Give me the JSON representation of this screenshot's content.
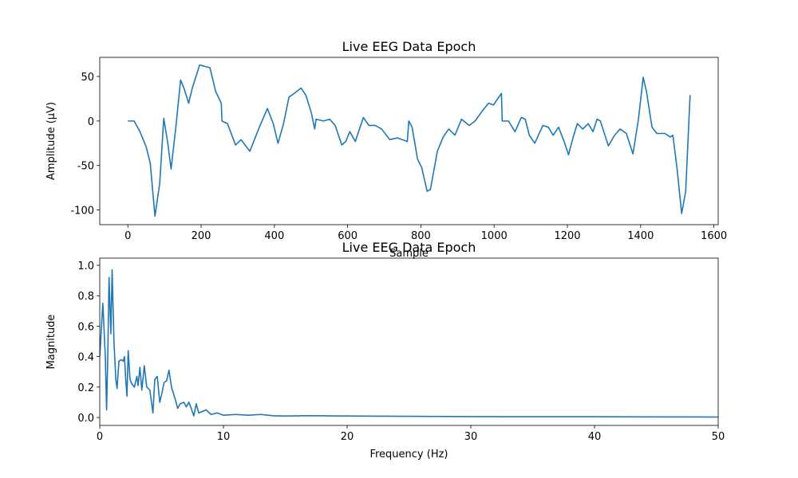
{
  "chart_data": [
    {
      "type": "line",
      "title": "Live EEG Data Epoch",
      "xlabel": "Sample",
      "ylabel": "Amplitude (µV)",
      "color": "#1f77b4",
      "grid": false,
      "xlim": [
        -76.75,
        1611.75
      ],
      "ylim": [
        -116.5,
        71.5
      ],
      "xticks": [
        0,
        200,
        400,
        600,
        800,
        1000,
        1200,
        1400,
        1600
      ],
      "yticks": [
        -100,
        -50,
        0,
        50
      ],
      "x": [
        0,
        17,
        33,
        50,
        61,
        74,
        87,
        98,
        109,
        118,
        131,
        144,
        153,
        166,
        176,
        196,
        213,
        224,
        240,
        255,
        257,
        272,
        294,
        309,
        333,
        359,
        381,
        397,
        410,
        425,
        440,
        451,
        473,
        486,
        501,
        510,
        514,
        534,
        551,
        566,
        584,
        595,
        606,
        621,
        643,
        658,
        675,
        693,
        715,
        736,
        763,
        767,
        776,
        791,
        802,
        817,
        826,
        845,
        861,
        876,
        893,
        911,
        932,
        948,
        969,
        985,
        998,
        1020,
        1022,
        1039,
        1057,
        1074,
        1085,
        1096,
        1111,
        1133,
        1148,
        1161,
        1176,
        1191,
        1203,
        1216,
        1227,
        1242,
        1257,
        1270,
        1281,
        1290,
        1301,
        1312,
        1329,
        1344,
        1361,
        1379,
        1394,
        1407,
        1416,
        1431,
        1444,
        1466,
        1481,
        1488,
        1499,
        1512,
        1523,
        1535
      ],
      "values": [
        0,
        0,
        -12,
        -29,
        -47,
        -107,
        -70,
        3,
        -25,
        -54,
        -7,
        46,
        37,
        20,
        37,
        63,
        61,
        60,
        33,
        20,
        0,
        -3,
        -27,
        -21,
        -34,
        -7,
        14,
        -3,
        -25,
        -3,
        27,
        30,
        37,
        29,
        9,
        -9,
        2,
        0,
        2,
        -5,
        -27,
        -23,
        -12,
        -23,
        4,
        -5,
        -5,
        -9,
        -21,
        -19,
        -23,
        0,
        -7,
        -43,
        -52,
        -79,
        -77,
        -34,
        -18,
        -9,
        -16,
        2,
        -5,
        0,
        12,
        20,
        18,
        31,
        0,
        0,
        -12,
        4,
        2,
        -16,
        -25,
        -5,
        -7,
        -16,
        -7,
        -23,
        -38,
        -18,
        -3,
        -9,
        -3,
        -12,
        2,
        0,
        -14,
        -28,
        -16,
        -9,
        -14,
        -37,
        2,
        49,
        33,
        -7,
        -14,
        -14,
        -18,
        -16,
        -52,
        -104,
        -79,
        29
      ]
    },
    {
      "type": "line",
      "title": "Live EEG Data Epoch",
      "xlabel": "Frequency (Hz)",
      "ylabel": "Magnitude",
      "color": "#1f77b4",
      "grid": false,
      "xlim": [
        0,
        50
      ],
      "ylim": [
        -0.052,
        1.047
      ],
      "xticks": [
        0,
        10,
        20,
        30,
        40,
        50
      ],
      "yticks": [
        {
          "value": 0,
          "label": "0.0"
        },
        {
          "value": 0.2,
          "label": "0.2"
        },
        {
          "value": 0.4,
          "label": "0.4"
        },
        {
          "value": 0.6,
          "label": "0.6"
        },
        {
          "value": 0.8,
          "label": "0.8"
        },
        {
          "value": 1,
          "label": "1.0"
        }
      ],
      "x": [
        0,
        0.25,
        0.45,
        0.55,
        0.65,
        0.75,
        0.9,
        1.0,
        1.15,
        1.3,
        1.4,
        1.55,
        1.75,
        1.9,
        2.0,
        2.1,
        2.2,
        2.3,
        2.45,
        2.6,
        2.8,
        3.0,
        3.1,
        3.25,
        3.4,
        3.6,
        3.8,
        4.05,
        4.3,
        4.45,
        4.65,
        4.85,
        5.0,
        5.2,
        5.4,
        5.6,
        5.8,
        6.1,
        6.3,
        6.5,
        6.8,
        7.0,
        7.2,
        7.4,
        7.6,
        7.8,
        8.0,
        8.3,
        8.6,
        9.0,
        9.5,
        10,
        11,
        12,
        13,
        14,
        15,
        17,
        20,
        25,
        30,
        35,
        40,
        45,
        50
      ],
      "values": [
        0.4,
        0.75,
        0.4,
        0.05,
        0.4,
        0.92,
        0.55,
        0.97,
        0.5,
        0.25,
        0.19,
        0.37,
        0.38,
        0.37,
        0.4,
        0.25,
        0.14,
        0.44,
        0.25,
        0.22,
        0.2,
        0.27,
        0.21,
        0.33,
        0.18,
        0.34,
        0.2,
        0.18,
        0.03,
        0.25,
        0.27,
        0.1,
        0.15,
        0.23,
        0.24,
        0.31,
        0.2,
        0.12,
        0.06,
        0.09,
        0.1,
        0.07,
        0.1,
        0.06,
        0.01,
        0.09,
        0.03,
        0.04,
        0.05,
        0.02,
        0.03,
        0.015,
        0.02,
        0.015,
        0.02,
        0.012,
        0.01,
        0.012,
        0.01,
        0.008,
        0.006,
        0.005,
        0.005,
        0.004,
        0.003
      ]
    }
  ]
}
